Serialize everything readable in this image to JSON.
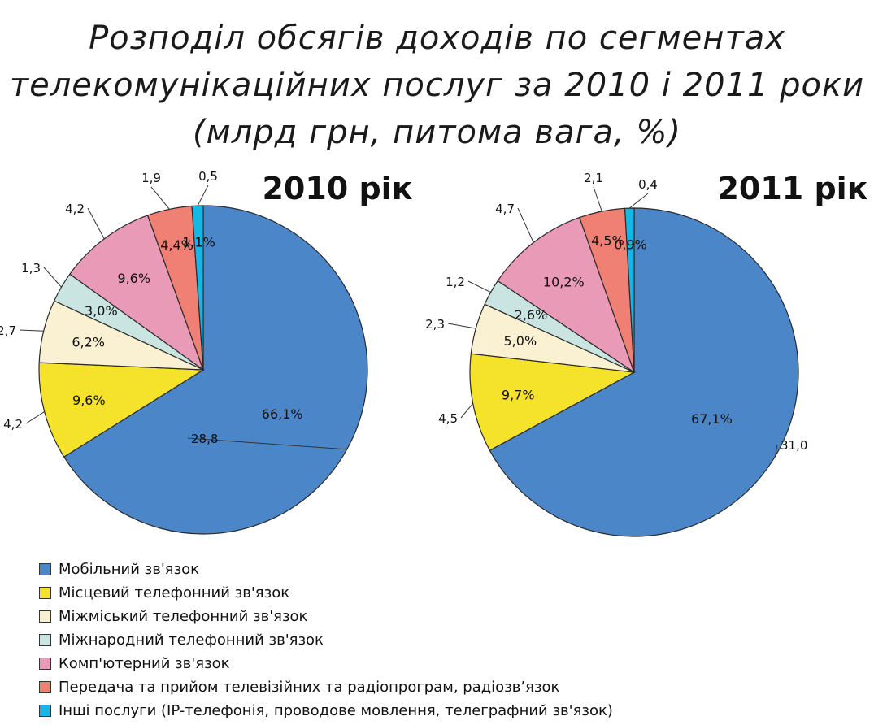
{
  "title": {
    "line1": "Розподіл обсягів доходів по сегментах",
    "line2": "телекомунікаційних послуг за 2010 і 2011 роки",
    "line3": "(млрд грн, питома вага, %)"
  },
  "colors": {
    "mobile": "#4A86C8",
    "local": "#F5E22A",
    "intercity": "#FAF1D2",
    "international": "#C9E4E1",
    "computer": "#E99AB6",
    "broadcast": "#F08074",
    "other": "#15B7E6"
  },
  "legend": [
    {
      "label": "Мобільний зв'язок",
      "color": "#4A86C8"
    },
    {
      "label": "Місцевий телефонний зв'язок",
      "color": "#F5E22A"
    },
    {
      "label": "Міжміський телефонний зв'язок",
      "color": "#FAF1D2"
    },
    {
      "label": "Міжнародний телефонний зв'язок",
      "color": "#C9E4E1"
    },
    {
      "label": "Комп'ютерний зв'язок",
      "color": "#E99AB6"
    },
    {
      "label": "Передача та прийом телевізійних та радіопрограм, радіозв’язок",
      "color": "#F08074"
    },
    {
      "label": "Інші послуги (IP-телефонія, проводове мовлення, телеграфний зв'язок)",
      "color": "#15B7E6"
    }
  ],
  "chart_data": [
    {
      "type": "pie",
      "title": "2010 рік",
      "categories": [
        "Мобільний зв'язок",
        "Місцевий телефонний зв'язок",
        "Міжміський телефонний зв'язок",
        "Міжнародний телефонний зв'язок",
        "Комп'ютерний зв'язок",
        "Передача та прийом телевізійних та радіопрограм, радіозв’язок",
        "Інші послуги (IP-телефонія, проводове мовлення, телеграфний зв'язок)"
      ],
      "values": [
        28.8,
        4.2,
        2.7,
        1.3,
        4.2,
        1.9,
        0.5
      ],
      "value_labels": [
        "28,8",
        "4,2",
        "2,7",
        "1,3",
        "4,2",
        "1,9",
        "0,5"
      ],
      "percents": [
        66.1,
        9.6,
        6.2,
        3.0,
        9.6,
        4.4,
        1.1
      ],
      "percent_labels": [
        "66,1%",
        "9,6%",
        "6,2%",
        "3,0%",
        "9,6%",
        "4,4%",
        "1,1%"
      ]
    },
    {
      "type": "pie",
      "title": "2011 рік",
      "categories": [
        "Мобільний зв'язок",
        "Місцевий телефонний зв'язок",
        "Міжміський телефонний зв'язок",
        "Міжнародний телефонний зв'язок",
        "Комп'ютерний зв'язок",
        "Передача та прийом телевізійних та радіопрограм, радіозв’язок",
        "Інші послуги (IP-телефонія, проводове мовлення, телеграфний зв'язок)"
      ],
      "values": [
        31.0,
        4.5,
        2.3,
        1.2,
        4.7,
        2.1,
        0.4
      ],
      "value_labels": [
        "31,0",
        "4,5",
        "2,3",
        "1,2",
        "4,7",
        "2,1",
        "0,4"
      ],
      "percents": [
        67.1,
        9.7,
        5.0,
        2.6,
        10.2,
        4.5,
        0.9
      ],
      "percent_labels": [
        "67,1%",
        "9,7%",
        "5,0%",
        "2,6%",
        "10,2%",
        "4,5%",
        "0,9%"
      ]
    }
  ]
}
